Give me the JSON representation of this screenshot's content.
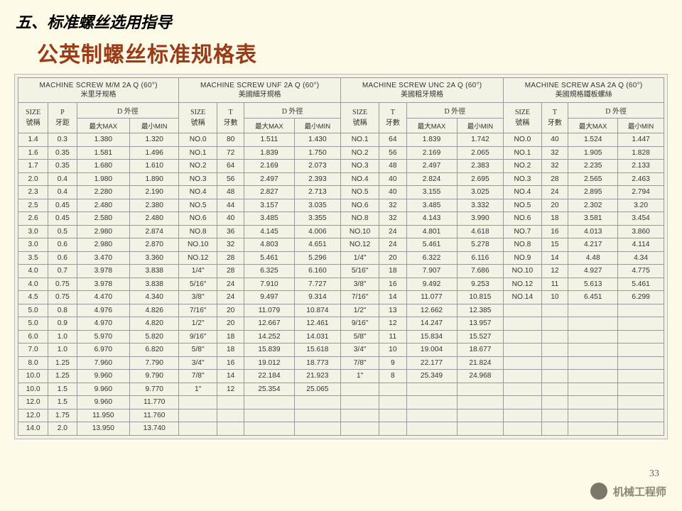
{
  "heading1": "五、标准螺丝选用指导",
  "heading2": "公英制螺丝标准规格表",
  "page_num": "33",
  "watermark": "机械工程师",
  "groups": [
    {
      "en": "MACHINE SCREW M/M 2A Q (60°)",
      "cn": "米里牙规格",
      "cols": [
        "SIZE 號稱",
        "P 牙距",
        "D 外徑"
      ],
      "sub": [
        "最大MAX",
        "最小MIN"
      ]
    },
    {
      "en": "MACHINE SCREW UNF 2A Q (60°)",
      "cn": "美國細牙規格",
      "cols": [
        "SIZE 號稱",
        "T 牙數",
        "D 外徑"
      ],
      "sub": [
        "最大MAX",
        "最小MIN"
      ]
    },
    {
      "en": "MACHINE SCREW UNC 2A Q (60°)",
      "cn": "美國粗牙規格",
      "cols": [
        "SIZE 號稱",
        "T 牙數",
        "D 外徑"
      ],
      "sub": [
        "最大MAX",
        "最小MIN"
      ]
    },
    {
      "en": "MACHINE SCREW ASA 2A Q (60°)",
      "cn": "美國規格鐵板螺絲",
      "cols": [
        "SIZE 號稱",
        "T 牙數",
        "D 外徑"
      ],
      "sub": [
        "最大MAX",
        "最小MIN"
      ]
    }
  ],
  "rows": [
    [
      "1.4",
      "0.3",
      "1.380",
      "1.320",
      "NO.0",
      "80",
      "1.511",
      "1.430",
      "NO.1",
      "64",
      "1.839",
      "1.742",
      "NO.0",
      "40",
      "1.524",
      "1.447"
    ],
    [
      "1.6",
      "0.35",
      "1.581",
      "1.496",
      "NO.1",
      "72",
      "1.839",
      "1.750",
      "NO.2",
      "56",
      "2.169",
      "2.065",
      "NO.1",
      "32",
      "1.905",
      "1.828"
    ],
    [
      "1.7",
      "0.35",
      "1.680",
      "1.610",
      "NO.2",
      "64",
      "2.169",
      "2.073",
      "NO.3",
      "48",
      "2.497",
      "2.383",
      "NO.2",
      "32",
      "2.235",
      "2.133"
    ],
    [
      "2.0",
      "0.4",
      "1.980",
      "1.890",
      "NO.3",
      "56",
      "2.497",
      "2.393",
      "NO.4",
      "40",
      "2.824",
      "2.695",
      "NO.3",
      "28",
      "2.565",
      "2.463"
    ],
    [
      "2.3",
      "0.4",
      "2.280",
      "2.190",
      "NO.4",
      "48",
      "2.827",
      "2.713",
      "NO.5",
      "40",
      "3.155",
      "3.025",
      "NO.4",
      "24",
      "2.895",
      "2.794"
    ],
    [
      "2.5",
      "0.45",
      "2.480",
      "2.380",
      "NO.5",
      "44",
      "3.157",
      "3.035",
      "NO.6",
      "32",
      "3.485",
      "3.332",
      "NO.5",
      "20",
      "2.302",
      "3.20"
    ],
    [
      "2.6",
      "0.45",
      "2.580",
      "2.480",
      "NO.6",
      "40",
      "3.485",
      "3.355",
      "NO.8",
      "32",
      "4.143",
      "3.990",
      "NO.6",
      "18",
      "3.581",
      "3.454"
    ],
    [
      "3.0",
      "0.5",
      "2.980",
      "2.874",
      "NO.8",
      "36",
      "4.145",
      "4.006",
      "NO.10",
      "24",
      "4.801",
      "4.618",
      "NO.7",
      "16",
      "4.013",
      "3.860"
    ],
    [
      "3.0",
      "0.6",
      "2.980",
      "2.870",
      "NO.10",
      "32",
      "4.803",
      "4.651",
      "NO.12",
      "24",
      "5.461",
      "5.278",
      "NO.8",
      "15",
      "4.217",
      "4.114"
    ],
    [
      "3.5",
      "0.6",
      "3.470",
      "3.360",
      "NO.12",
      "28",
      "5.461",
      "5.296",
      "1/4\"",
      "20",
      "6.322",
      "6.116",
      "NO.9",
      "14",
      "4.48",
      "4.34"
    ],
    [
      "4.0",
      "0.7",
      "3.978",
      "3.838",
      "1/4\"",
      "28",
      "6.325",
      "6.160",
      "5/16\"",
      "18",
      "7.907",
      "7.686",
      "NO.10",
      "12",
      "4.927",
      "4.775"
    ],
    [
      "4.0",
      "0.75",
      "3.978",
      "3.838",
      "5/16\"",
      "24",
      "7.910",
      "7.727",
      "3/8\"",
      "16",
      "9.492",
      "9.253",
      "NO.12",
      "11",
      "5.613",
      "5.461"
    ],
    [
      "4.5",
      "0.75",
      "4.470",
      "4.340",
      "3/8\"",
      "24",
      "9.497",
      "9.314",
      "7/16\"",
      "14",
      "11.077",
      "10.815",
      "NO.14",
      "10",
      "6.451",
      "6.299"
    ],
    [
      "5.0",
      "0.8",
      "4.976",
      "4.826",
      "7/16\"",
      "20",
      "11.079",
      "10.874",
      "1/2\"",
      "13",
      "12.662",
      "12.385",
      "",
      "",
      "",
      ""
    ],
    [
      "5.0",
      "0.9",
      "4.970",
      "4.820",
      "1/2\"",
      "20",
      "12.667",
      "12.461",
      "9/16\"",
      "12",
      "14.247",
      "13.957",
      "",
      "",
      "",
      ""
    ],
    [
      "6.0",
      "1.0",
      "5.970",
      "5.820",
      "9/16\"",
      "18",
      "14.252",
      "14.031",
      "5/8\"",
      "11",
      "15.834",
      "15.527",
      "",
      "",
      "",
      ""
    ],
    [
      "7.0",
      "1.0",
      "6.970",
      "6.820",
      "5/8\"",
      "18",
      "15.839",
      "15.618",
      "3/4\"",
      "10",
      "19.004",
      "18.677",
      "",
      "",
      "",
      ""
    ],
    [
      "8.0",
      "1.25",
      "7.960",
      "7.790",
      "3/4\"",
      "16",
      "19.012",
      "18.773",
      "7/8\"",
      "9",
      "22.177",
      "21.824",
      "",
      "",
      "",
      ""
    ],
    [
      "10.0",
      "1.25",
      "9.960",
      "9.790",
      "7/8\"",
      "14",
      "22.184",
      "21.923",
      "1\"",
      "8",
      "25.349",
      "24.968",
      "",
      "",
      "",
      ""
    ],
    [
      "10.0",
      "1.5",
      "9.960",
      "9.770",
      "1\"",
      "12",
      "25.354",
      "25.065",
      "",
      "",
      "",
      "",
      "",
      "",
      "",
      ""
    ],
    [
      "12.0",
      "1.5",
      "9.960",
      "11.770",
      "",
      "",
      "",
      "",
      "",
      "",
      "",
      "",
      "",
      "",
      "",
      ""
    ],
    [
      "12.0",
      "1.75",
      "11.950",
      "11.760",
      "",
      "",
      "",
      "",
      "",
      "",
      "",
      "",
      "",
      "",
      "",
      ""
    ],
    [
      "14.0",
      "2.0",
      "13.950",
      "13.740",
      "",
      "",
      "",
      "",
      "",
      "",
      "",
      "",
      "",
      "",
      "",
      ""
    ]
  ],
  "col_labels": {
    "size": "SIZE",
    "size_cn": "號稱",
    "p": "P",
    "p_cn": "牙距",
    "t": "T",
    "t_cn": "牙數",
    "d": "D 外徑",
    "max": "最大MAX",
    "min": "最小MIN"
  }
}
